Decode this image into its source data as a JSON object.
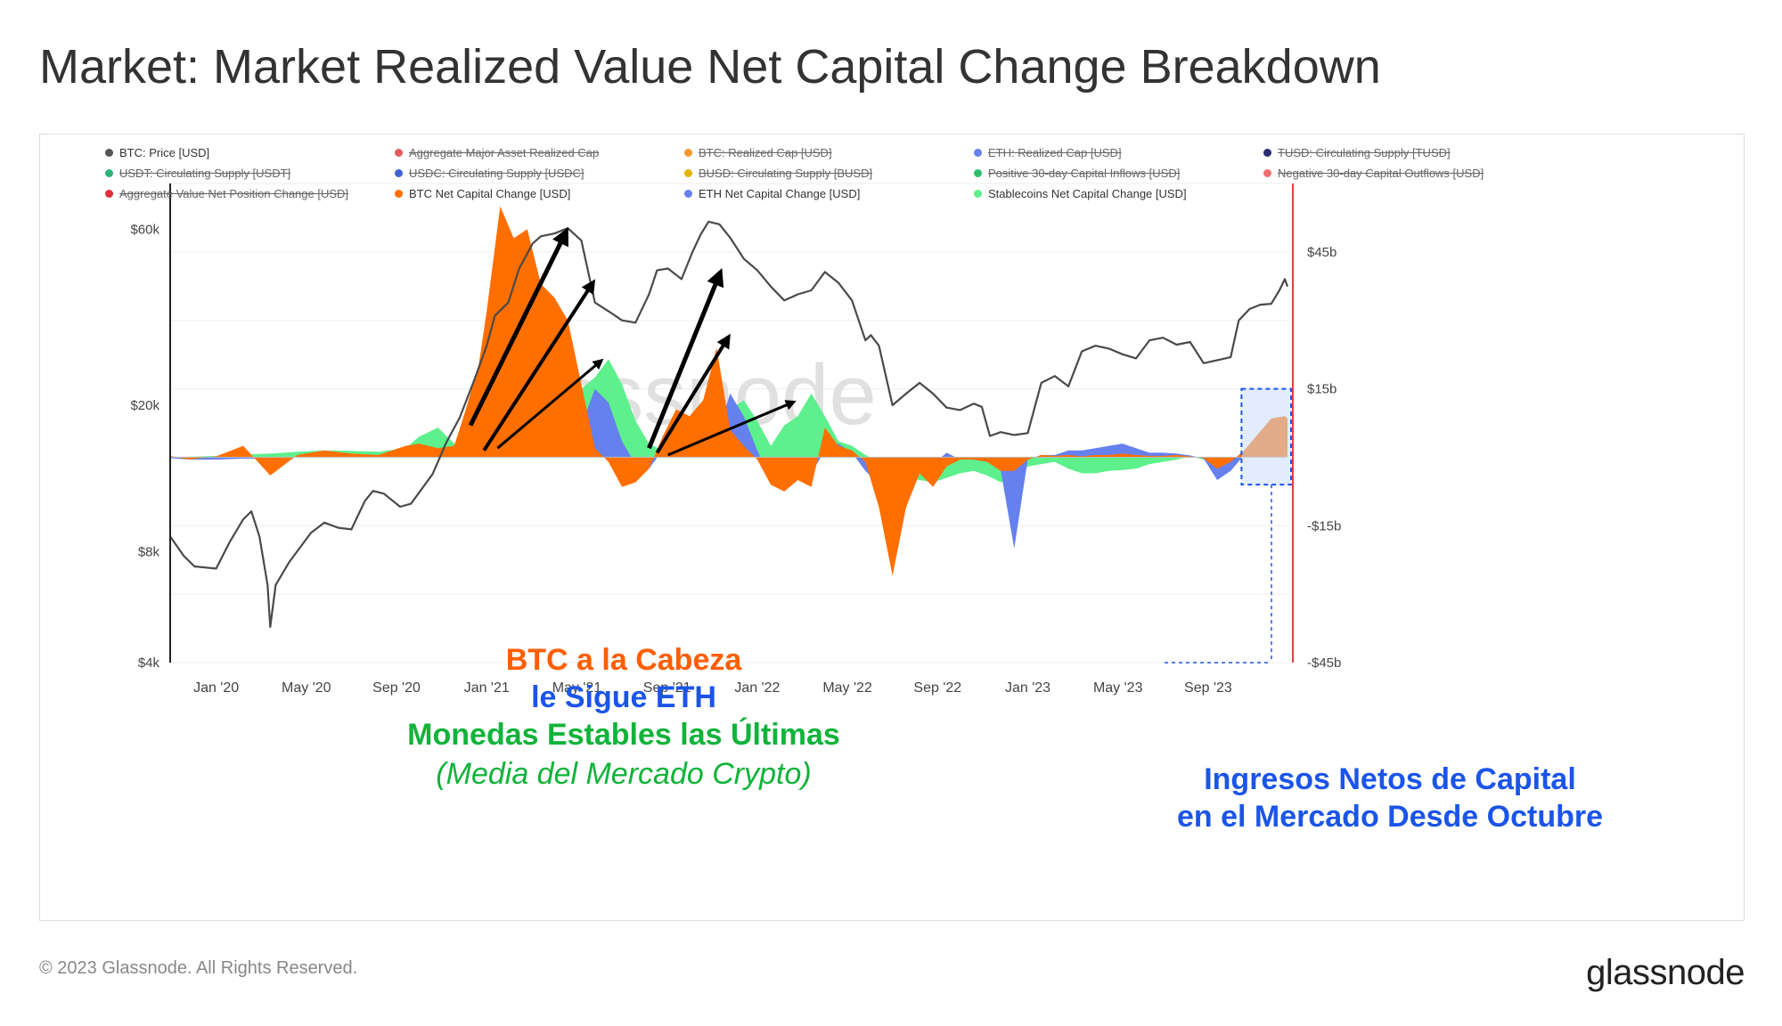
{
  "title": "Market: Market Realized Value Net Capital Change Breakdown",
  "footer": "© 2023 Glassnode. All Rights Reserved.",
  "logo": "glassnode",
  "watermark": "glassnode",
  "colors": {
    "price": "#4a4a4a",
    "btc": "#ff6f00",
    "eth": "#6680ee",
    "stable": "#5df08c",
    "red_axis": "#e04040",
    "arrow": "#000000",
    "highlight_fill": "#cbdcfa",
    "highlight_border": "#1b55e8",
    "anno_btc": "#ff5e00",
    "anno_eth": "#1b55e8",
    "anno_stable": "#11b33a"
  },
  "legend": [
    {
      "label": "BTC: Price [USD]",
      "color": "#555555",
      "active": true
    },
    {
      "label": "Aggregate Major Asset Realized Cap",
      "color": "#e25c5c",
      "active": false
    },
    {
      "label": "BTC: Realized Cap [USD]",
      "color": "#f39a2b",
      "active": false
    },
    {
      "label": "ETH: Realized Cap [USD]",
      "color": "#6680ee",
      "active": false
    },
    {
      "label": "TUSD: Circulating Supply [TUSD]",
      "color": "#2a2a6e",
      "active": false
    },
    {
      "label": "USDT: Circulating Supply [USDT]",
      "color": "#2db37a",
      "active": false
    },
    {
      "label": "USDC: Circulating Supply [USDC]",
      "color": "#3f63c9",
      "active": false
    },
    {
      "label": "BUSD: Circulating Supply [BUSD]",
      "color": "#e2b600",
      "active": false
    },
    {
      "label": "Positive 30-day Capital Inflows [USD]",
      "color": "#2ebd6b",
      "active": false
    },
    {
      "label": "Negative 30-day Capital Outflows [USD]",
      "color": "#f07070",
      "active": false
    },
    {
      "label": "Aggregate Value Net Position Change [USD]",
      "color": "#e0303a",
      "active": false
    },
    {
      "label": "BTC Net Capital Change [USD]",
      "color": "#ff6f00",
      "active": true
    },
    {
      "label": "ETH Net Capital Change [USD]",
      "color": "#6680ee",
      "active": true
    },
    {
      "label": "Stablecoins Net Capital Change [USD]",
      "color": "#5df08c",
      "active": true
    }
  ],
  "annotations": {
    "line1": "BTC a la Cabeza",
    "line2": "le Sigue ETH",
    "line3": "Monedas Estables las Últimas",
    "line4": "(Media del Mercado Crypto)",
    "inflow1": "Ingresos Netos de Capital",
    "inflow2": "en el Mercado Desde Octubre"
  },
  "chart_data": {
    "type": "area",
    "x_axis": {
      "ticks": [
        "Jan '20",
        "May '20",
        "Sep '20",
        "Jan '21",
        "May '21",
        "Sep '21",
        "Jan '22",
        "May '22",
        "Sep '22",
        "Jan '23",
        "May '23",
        "Sep '23"
      ],
      "start": 2019.83,
      "end": 2023.96
    },
    "left_axis": {
      "scale": "log",
      "ticks": [
        "$60k",
        "$20k",
        "$8k",
        "$4k"
      ],
      "tick_values": [
        60000,
        20000,
        8000,
        4000
      ],
      "range": [
        4000,
        80000
      ]
    },
    "right_axis": {
      "scale": "linear",
      "ticks": [
        "$45b",
        "$15b",
        "-$15b",
        "-$45b"
      ],
      "tick_values": [
        45,
        15,
        -15,
        -45
      ],
      "range": [
        -45,
        60
      ]
    },
    "price_series": {
      "name": "BTC: Price [USD]",
      "x": [
        2019.83,
        2019.88,
        2019.92,
        2020.0,
        2020.05,
        2020.1,
        2020.13,
        2020.16,
        2020.19,
        2020.2,
        2020.22,
        2020.27,
        2020.35,
        2020.4,
        2020.45,
        2020.5,
        2020.55,
        2020.58,
        2020.62,
        2020.68,
        2020.72,
        2020.8,
        2020.85,
        2020.9,
        2020.95,
        2021.0,
        2021.03,
        2021.08,
        2021.12,
        2021.17,
        2021.2,
        2021.25,
        2021.3,
        2021.35,
        2021.4,
        2021.45,
        2021.5,
        2021.55,
        2021.6,
        2021.63,
        2021.67,
        2021.72,
        2021.76,
        2021.79,
        2021.82,
        2021.86,
        2021.9,
        2021.95,
        2022.0,
        2022.05,
        2022.1,
        2022.15,
        2022.2,
        2022.25,
        2022.3,
        2022.35,
        2022.4,
        2022.42,
        2022.45,
        2022.5,
        2022.55,
        2022.6,
        2022.65,
        2022.7,
        2022.75,
        2022.8,
        2022.83,
        2022.86,
        2022.9,
        2022.95,
        2023.0,
        2023.05,
        2023.1,
        2023.15,
        2023.2,
        2023.25,
        2023.3,
        2023.35,
        2023.4,
        2023.45,
        2023.5,
        2023.55,
        2023.6,
        2023.65,
        2023.7,
        2023.75,
        2023.78,
        2023.82,
        2023.86,
        2023.9,
        2023.93,
        2023.95,
        2023.96
      ],
      "y": [
        8800,
        7800,
        7300,
        7200,
        8500,
        9800,
        10300,
        8800,
        6500,
        5000,
        6500,
        7500,
        9000,
        9600,
        9300,
        9200,
        11000,
        11700,
        11500,
        10600,
        10800,
        13000,
        15800,
        18500,
        23000,
        29000,
        35000,
        38000,
        47000,
        55000,
        57500,
        58500,
        60500,
        56000,
        38000,
        36000,
        34000,
        33500,
        40000,
        46500,
        47000,
        44000,
        52000,
        58000,
        63000,
        62000,
        57000,
        50000,
        46500,
        42000,
        38500,
        40000,
        41000,
        46000,
        43000,
        38500,
        30000,
        31000,
        29000,
        20000,
        21500,
        23000,
        21500,
        19700,
        19400,
        20200,
        19800,
        16500,
        16900,
        16600,
        16800,
        23000,
        24000,
        22500,
        28000,
        29000,
        28500,
        27500,
        26800,
        30000,
        30500,
        29200,
        29700,
        26000,
        26500,
        27000,
        34000,
        36500,
        37500,
        37700,
        41000,
        44000,
        42000
      ]
    },
    "series": [
      {
        "name": "Stablecoins Net Capital Change [USD]",
        "color": "#5df08c",
        "x": [
          2019.83,
          2019.9,
          2020.0,
          2020.1,
          2020.2,
          2020.3,
          2020.4,
          2020.5,
          2020.6,
          2020.7,
          2020.75,
          2020.82,
          2020.88,
          2020.92,
          2020.97,
          2021.0,
          2021.05,
          2021.1,
          2021.15,
          2021.2,
          2021.25,
          2021.3,
          2021.35,
          2021.4,
          2021.45,
          2021.5,
          2021.55,
          2021.6,
          2021.65,
          2021.7,
          2021.75,
          2021.8,
          2021.85,
          2021.9,
          2021.95,
          2022.0,
          2022.05,
          2022.1,
          2022.15,
          2022.2,
          2022.25,
          2022.3,
          2022.35,
          2022.4,
          2022.45,
          2022.5,
          2022.55,
          2022.6,
          2022.65,
          2022.7,
          2022.75,
          2022.8,
          2022.85,
          2022.9,
          2022.95,
          2023.0,
          2023.05,
          2023.1,
          2023.15,
          2023.2,
          2023.25,
          2023.3,
          2023.35,
          2023.4,
          2023.45,
          2023.5,
          2023.55,
          2023.6,
          2023.65,
          2023.7,
          2023.75,
          2023.8,
          2023.85,
          2023.9,
          2023.95,
          2023.96
        ],
        "values": [
          0,
          0.1,
          0.3,
          0.6,
          0.8,
          1.2,
          1.5,
          1.4,
          1.2,
          2.0,
          4.5,
          6.5,
          3.0,
          2.0,
          3.0,
          4.0,
          4.5,
          5.0,
          6.0,
          7.5,
          9.5,
          12.0,
          15.0,
          17.5,
          21.5,
          16.0,
          8.0,
          3.0,
          1.5,
          2.0,
          4.0,
          6.5,
          8.5,
          10.5,
          12.5,
          8.0,
          2.5,
          7.0,
          9.0,
          14.0,
          9.0,
          3.5,
          2.5,
          0.5,
          -1.0,
          -3.5,
          -4.5,
          -5.0,
          -5.5,
          -4.5,
          -3.5,
          -3.0,
          -4.0,
          -5.5,
          -4.5,
          -2.0,
          -1.5,
          -1.0,
          -2.5,
          -3.5,
          -3.5,
          -3.0,
          -2.8,
          -2.5,
          -1.5,
          -1.0,
          -0.5,
          0.2,
          -0.5,
          -1.0,
          -0.8,
          0.5,
          1.5,
          2.5,
          3.0,
          3.0
        ]
      },
      {
        "name": "ETH Net Capital Change [USD]",
        "color": "#6680ee",
        "x": [
          2019.83,
          2019.9,
          2020.0,
          2020.1,
          2020.2,
          2020.3,
          2020.4,
          2020.5,
          2020.6,
          2020.7,
          2020.75,
          2020.82,
          2020.88,
          2020.92,
          2020.97,
          2021.0,
          2021.05,
          2021.1,
          2021.15,
          2021.2,
          2021.25,
          2021.3,
          2021.35,
          2021.4,
          2021.45,
          2021.5,
          2021.55,
          2021.6,
          2021.65,
          2021.7,
          2021.75,
          2021.8,
          2021.85,
          2021.9,
          2021.95,
          2022.0,
          2022.05,
          2022.1,
          2022.15,
          2022.2,
          2022.25,
          2022.3,
          2022.35,
          2022.4,
          2022.45,
          2022.5,
          2022.55,
          2022.6,
          2022.65,
          2022.7,
          2022.75,
          2022.8,
          2022.85,
          2022.9,
          2022.95,
          2023.0,
          2023.05,
          2023.1,
          2023.15,
          2023.2,
          2023.25,
          2023.3,
          2023.35,
          2023.4,
          2023.45,
          2023.5,
          2023.55,
          2023.6,
          2023.65,
          2023.7,
          2023.75,
          2023.8,
          2023.85,
          2023.9,
          2023.95,
          2023.96
        ],
        "values": [
          -0.2,
          -0.5,
          -0.5,
          -0.3,
          -0.2,
          0.1,
          0.3,
          0.2,
          0.5,
          1.0,
          1.5,
          1.2,
          1.5,
          2.0,
          5.0,
          8.0,
          12.0,
          14.0,
          12.0,
          11.5,
          8.5,
          5.5,
          7.0,
          15.0,
          12.0,
          3.5,
          -1.5,
          -2.5,
          1.5,
          4.5,
          5.5,
          3.5,
          4.5,
          14.0,
          9.0,
          1.5,
          -5.0,
          -4.0,
          -3.0,
          -3.5,
          1.5,
          3.0,
          1.0,
          -3.0,
          -6.0,
          -10.5,
          -7.5,
          -2.5,
          -1.5,
          1.0,
          -0.5,
          -0.5,
          -1.0,
          -3.0,
          -20.0,
          -0.5,
          0.5,
          0.5,
          1.5,
          1.5,
          2.0,
          2.5,
          3.0,
          2.0,
          1.0,
          1.0,
          0.8,
          0.4,
          -0.3,
          -5.0,
          -3.0,
          0.5,
          2.5,
          3.5,
          4.5,
          4.0
        ]
      },
      {
        "name": "BTC Net Capital Change [USD]",
        "color": "#ff6f00",
        "x": [
          2019.83,
          2019.9,
          2020.0,
          2020.1,
          2020.2,
          2020.3,
          2020.4,
          2020.5,
          2020.6,
          2020.7,
          2020.75,
          2020.82,
          2020.88,
          2020.92,
          2020.97,
          2021.0,
          2021.05,
          2021.1,
          2021.15,
          2021.2,
          2021.25,
          2021.3,
          2021.35,
          2021.4,
          2021.45,
          2021.5,
          2021.55,
          2021.6,
          2021.65,
          2021.7,
          2021.75,
          2021.8,
          2021.85,
          2021.9,
          2021.95,
          2022.0,
          2022.05,
          2022.1,
          2022.15,
          2022.2,
          2022.25,
          2022.3,
          2022.35,
          2022.4,
          2022.45,
          2022.5,
          2022.55,
          2022.6,
          2022.65,
          2022.7,
          2022.75,
          2022.8,
          2022.85,
          2022.9,
          2022.95,
          2023.0,
          2023.05,
          2023.1,
          2023.15,
          2023.2,
          2023.25,
          2023.3,
          2023.35,
          2023.4,
          2023.45,
          2023.5,
          2023.55,
          2023.6,
          2023.65,
          2023.7,
          2023.75,
          2023.8,
          2023.85,
          2023.9,
          2023.95,
          2023.96
        ],
        "values": [
          0.3,
          -0.5,
          0.2,
          2.5,
          -4.0,
          0.5,
          1.5,
          0.8,
          0.5,
          2.5,
          3.0,
          2.0,
          2.5,
          10.0,
          20.0,
          32.0,
          55.0,
          48.0,
          50.0,
          38.0,
          35.0,
          30.0,
          16.0,
          2.0,
          -1.0,
          -6.5,
          -5.5,
          -2.5,
          4.5,
          10.5,
          9.0,
          12.5,
          24.0,
          6.0,
          2.5,
          -0.5,
          -6.0,
          -7.5,
          -5.0,
          -6.5,
          6.5,
          2.5,
          1.5,
          -1.0,
          -11.0,
          -26.0,
          -11.0,
          -3.5,
          -6.5,
          -2.0,
          -0.5,
          -0.5,
          -1.0,
          -3.0,
          -3.0,
          -0.5,
          0.5,
          0.3,
          0.5,
          0.2,
          0.5,
          0.5,
          0.8,
          0.5,
          0.3,
          0.3,
          0.5,
          0.2,
          -0.2,
          -2.5,
          -1.0,
          1.5,
          5.0,
          8.5,
          9.0,
          8.5
        ]
      }
    ]
  }
}
